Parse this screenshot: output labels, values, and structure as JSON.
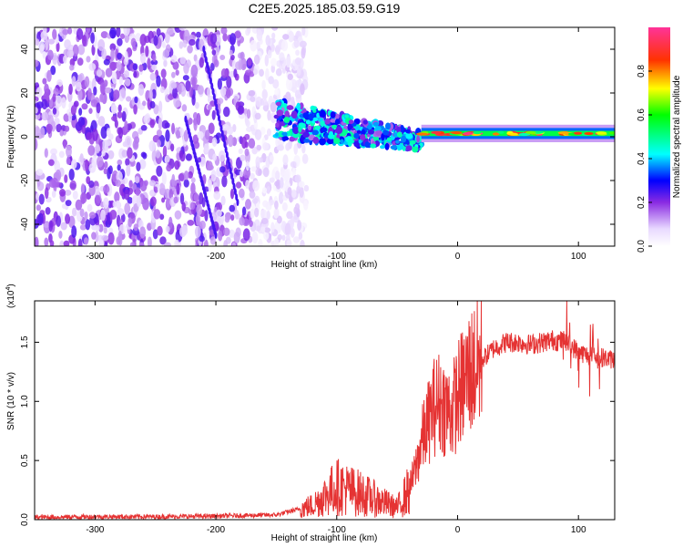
{
  "title": "C2E5.2025.185.03.59.G19",
  "spectrogram": {
    "xlabel": "Height of straight line (km)",
    "ylabel": "Frequency (Hz)",
    "xlim": [
      -350,
      130
    ],
    "ylim": [
      -50,
      50
    ],
    "xticks": [
      "-300",
      "-200",
      "-100",
      "0",
      "100"
    ],
    "yticks": [
      "40",
      "20",
      "0",
      "-20",
      "-40"
    ],
    "colorbar_label": "Normalized spectral amplitude",
    "colorbar_ticks": [
      "0.0",
      "0.2",
      "0.4",
      "0.6",
      "0.8"
    ]
  },
  "snr": {
    "xlabel": "Height of straight line (km)",
    "ylabel": "SNR (10 * v/v)",
    "exponent_label": "(x10",
    "exponent_power": "4",
    "exponent_close": ")",
    "xlim": [
      -350,
      130
    ],
    "ylim": [
      0,
      18500
    ],
    "xticks": [
      "-300",
      "-200",
      "-100",
      "0",
      "100"
    ],
    "yticks": [
      "0.0",
      "0.5",
      "1.0",
      "1.5"
    ],
    "line_color": "#e53333"
  },
  "chart_data": [
    {
      "type": "heatmap",
      "title": "C2E5.2025.185.03.59.G19",
      "xlabel": "Height of straight line (km)",
      "ylabel": "Frequency (Hz)",
      "xlim": [
        -350,
        130
      ],
      "ylim": [
        -50,
        50
      ],
      "colorbar": {
        "label": "Normalized spectral amplitude",
        "range": [
          0,
          1
        ]
      },
      "features": [
        {
          "x_range": [
            -350,
            -150
          ],
          "freq_range": [
            -50,
            50
          ],
          "amplitude": [
            0.05,
            0.25
          ]
        },
        {
          "x_range": [
            -150,
            -30
          ],
          "freq_center_start": 8,
          "freq_center_end": -2,
          "amplitude": [
            0.15,
            0.5
          ]
        },
        {
          "x_range": [
            -30,
            130
          ],
          "freq_center": 1.5,
          "amplitude": [
            0.45,
            1.0
          ]
        }
      ]
    },
    {
      "type": "line",
      "xlabel": "Height of straight line (km)",
      "ylabel": "SNR (10 * v/v)",
      "xlim": [
        -350,
        130
      ],
      "ylim": [
        0,
        18500
      ],
      "series": [
        {
          "color": "#e53333",
          "x": [
            -350,
            -300,
            -250,
            -200,
            -150,
            -120,
            -110,
            -100,
            -90,
            -80,
            -70,
            -60,
            -50,
            -40,
            -35,
            -30,
            -25,
            -20,
            -15,
            -10,
            -5,
            0,
            5,
            10,
            20,
            30,
            40,
            50,
            60,
            70,
            80,
            90,
            95,
            100,
            105,
            110,
            120,
            130
          ],
          "y": [
            200,
            250,
            250,
            300,
            400,
            1200,
            2000,
            2800,
            2500,
            2200,
            1800,
            1400,
            1000,
            2600,
            4200,
            6500,
            8000,
            9500,
            10000,
            9500,
            9000,
            10500,
            11500,
            12500,
            13500,
            14500,
            15000,
            15000,
            14800,
            15000,
            15200,
            15000,
            14600,
            14200,
            14000,
            13800,
            13700,
            13500
          ]
        }
      ]
    }
  ]
}
